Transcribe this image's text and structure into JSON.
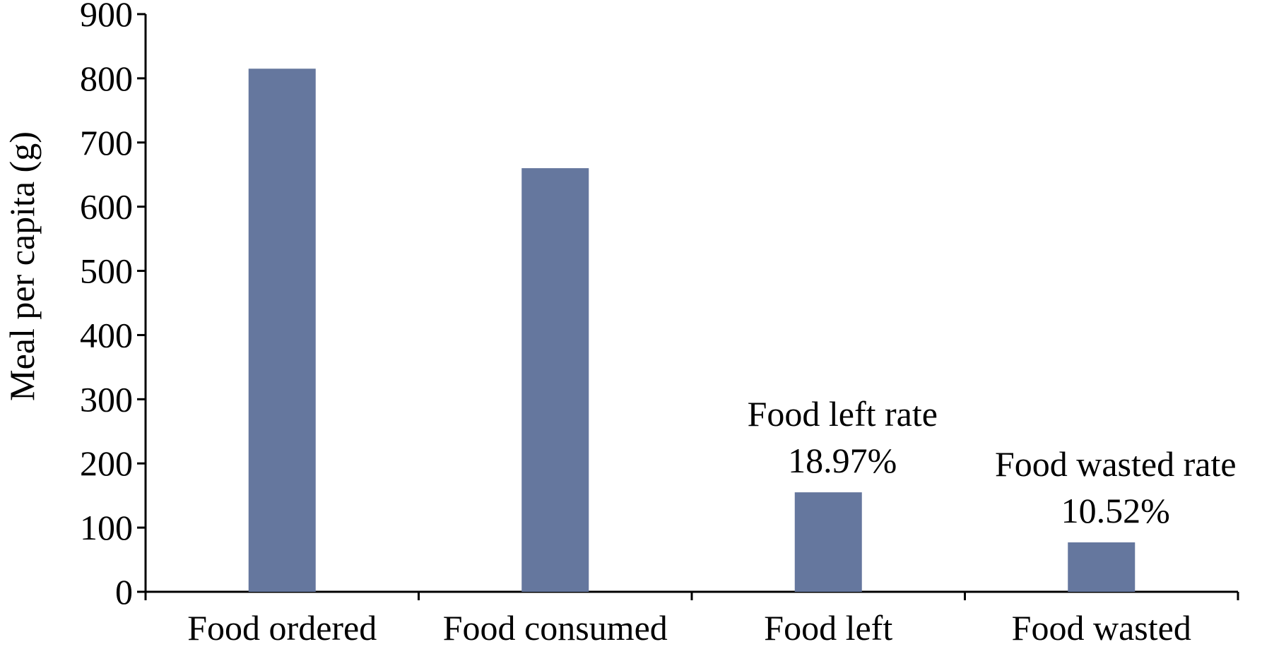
{
  "chart_data": {
    "type": "bar",
    "categories": [
      "Food ordered",
      "Food consumed",
      "Food left",
      "Food wasted"
    ],
    "values": [
      815,
      660,
      155,
      77
    ],
    "title": "",
    "xlabel": "",
    "ylabel": "Meal  per capita (g)",
    "ylim": [
      0,
      900
    ],
    "yticks": [
      0,
      100,
      200,
      300,
      400,
      500,
      600,
      700,
      800,
      900
    ],
    "bar_color": "#65779e",
    "grid": false,
    "legend": "none",
    "annotations": [
      {
        "category": "Food left",
        "lines": [
          "Food left rate",
          "18.97%"
        ]
      },
      {
        "category": "Food wasted",
        "lines": [
          "Food wasted rate",
          "10.52%"
        ]
      }
    ]
  }
}
